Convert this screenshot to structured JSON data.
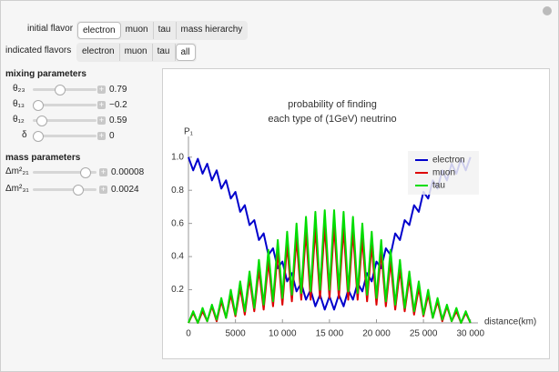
{
  "controls": {
    "initial_flavor": {
      "label": "initial flavor",
      "options": [
        "electron",
        "muon",
        "tau",
        "mass hierarchy"
      ],
      "selected": 0
    },
    "indicated_flavors": {
      "label": "indicated flavors",
      "options": [
        "electron",
        "muon",
        "tau",
        "all"
      ],
      "selected": 3
    },
    "mixing": {
      "title": "mixing parameters",
      "sliders": [
        {
          "label": "θ₂₃",
          "value": "0.79"
        },
        {
          "label": "θ₁₃",
          "value": "−0.2"
        },
        {
          "label": "θ₁₂",
          "value": "0.59"
        },
        {
          "label": "δ",
          "value": "0"
        }
      ]
    },
    "mass": {
      "title": "mass parameters",
      "sliders": [
        {
          "label": "Δm²₂₁",
          "value": "0.00008"
        },
        {
          "label": "Δm²₃₁",
          "value": "0.0024"
        }
      ]
    }
  },
  "chart_data": {
    "type": "line",
    "title": [
      "probability of finding",
      "each type of (1GeV) neutrino"
    ],
    "y_label": "P₁",
    "x_label": "distance(km)",
    "x": [
      0,
      500,
      1000,
      1500,
      2000,
      2500,
      3000,
      3500,
      4000,
      4500,
      5000,
      5500,
      6000,
      6500,
      7000,
      7500,
      8000,
      8500,
      9000,
      9500,
      10000,
      10500,
      11000,
      11500,
      12000,
      12500,
      13000,
      13500,
      14000,
      14500,
      15000,
      15500,
      16000,
      16500,
      17000,
      17500,
      18000,
      18500,
      19000,
      19500,
      20000,
      20500,
      21000,
      21500,
      22000,
      22500,
      23000,
      23500,
      24000,
      24500,
      25000,
      25500,
      26000,
      26500,
      27000,
      27500,
      28000,
      28500,
      29000,
      29500,
      30000
    ],
    "series": [
      {
        "name": "electron",
        "color": "#0000cc",
        "values": [
          1,
          0.92,
          0.99,
          0.9,
          0.96,
          0.86,
          0.92,
          0.81,
          0.86,
          0.75,
          0.79,
          0.67,
          0.71,
          0.59,
          0.62,
          0.5,
          0.54,
          0.41,
          0.45,
          0.33,
          0.37,
          0.25,
          0.3,
          0.19,
          0.24,
          0.14,
          0.2,
          0.1,
          0.17,
          0.08,
          0.16,
          0.08,
          0.17,
          0.1,
          0.2,
          0.14,
          0.24,
          0.19,
          0.3,
          0.25,
          0.37,
          0.33,
          0.45,
          0.41,
          0.54,
          0.5,
          0.62,
          0.59,
          0.71,
          0.67,
          0.79,
          0.75,
          0.86,
          0.81,
          0.92,
          0.86,
          0.96,
          0.9,
          0.99,
          0.92,
          1
        ]
      },
      {
        "name": "muon",
        "color": "#dd0000",
        "values": [
          0,
          0.06,
          0,
          0.07,
          0.01,
          0.1,
          0.01,
          0.13,
          0.03,
          0.17,
          0.04,
          0.21,
          0.05,
          0.27,
          0.07,
          0.32,
          0.08,
          0.37,
          0.1,
          0.43,
          0.11,
          0.47,
          0.13,
          0.51,
          0.14,
          0.55,
          0.14,
          0.57,
          0.15,
          0.58,
          0.15,
          0.58,
          0.15,
          0.57,
          0.14,
          0.55,
          0.14,
          0.51,
          0.13,
          0.47,
          0.11,
          0.43,
          0.1,
          0.37,
          0.08,
          0.32,
          0.07,
          0.27,
          0.05,
          0.21,
          0.04,
          0.17,
          0.03,
          0.13,
          0.01,
          0.1,
          0.01,
          0.07,
          0,
          0.06,
          0
        ]
      },
      {
        "name": "tau",
        "color": "#00dd00",
        "values": [
          0,
          0.07,
          0,
          0.09,
          0.01,
          0.11,
          0.02,
          0.15,
          0.03,
          0.2,
          0.05,
          0.25,
          0.07,
          0.31,
          0.09,
          0.38,
          0.11,
          0.44,
          0.13,
          0.5,
          0.15,
          0.55,
          0.17,
          0.6,
          0.18,
          0.64,
          0.19,
          0.67,
          0.2,
          0.68,
          0.2,
          0.68,
          0.2,
          0.67,
          0.19,
          0.64,
          0.18,
          0.6,
          0.17,
          0.55,
          0.15,
          0.5,
          0.13,
          0.44,
          0.11,
          0.38,
          0.09,
          0.31,
          0.07,
          0.25,
          0.05,
          0.2,
          0.03,
          0.15,
          0.02,
          0.11,
          0.01,
          0.09,
          0,
          0.07,
          0
        ]
      }
    ],
    "xlim": [
      0,
      30800
    ],
    "ylim": [
      0,
      1.07
    ],
    "xticks": [
      0,
      5000,
      {
        "value": 10000,
        "label": "10 000"
      },
      {
        "value": 15000,
        "label": "15 000"
      },
      {
        "value": 20000,
        "label": "20 000"
      },
      {
        "value": 25000,
        "label": "25 000"
      },
      {
        "value": 30000,
        "label": "30 000"
      }
    ],
    "yticks": [
      0.2,
      0.4,
      0.6,
      0.8,
      {
        "value": 1.0,
        "label": "1.0"
      }
    ],
    "legend": "top-right"
  }
}
